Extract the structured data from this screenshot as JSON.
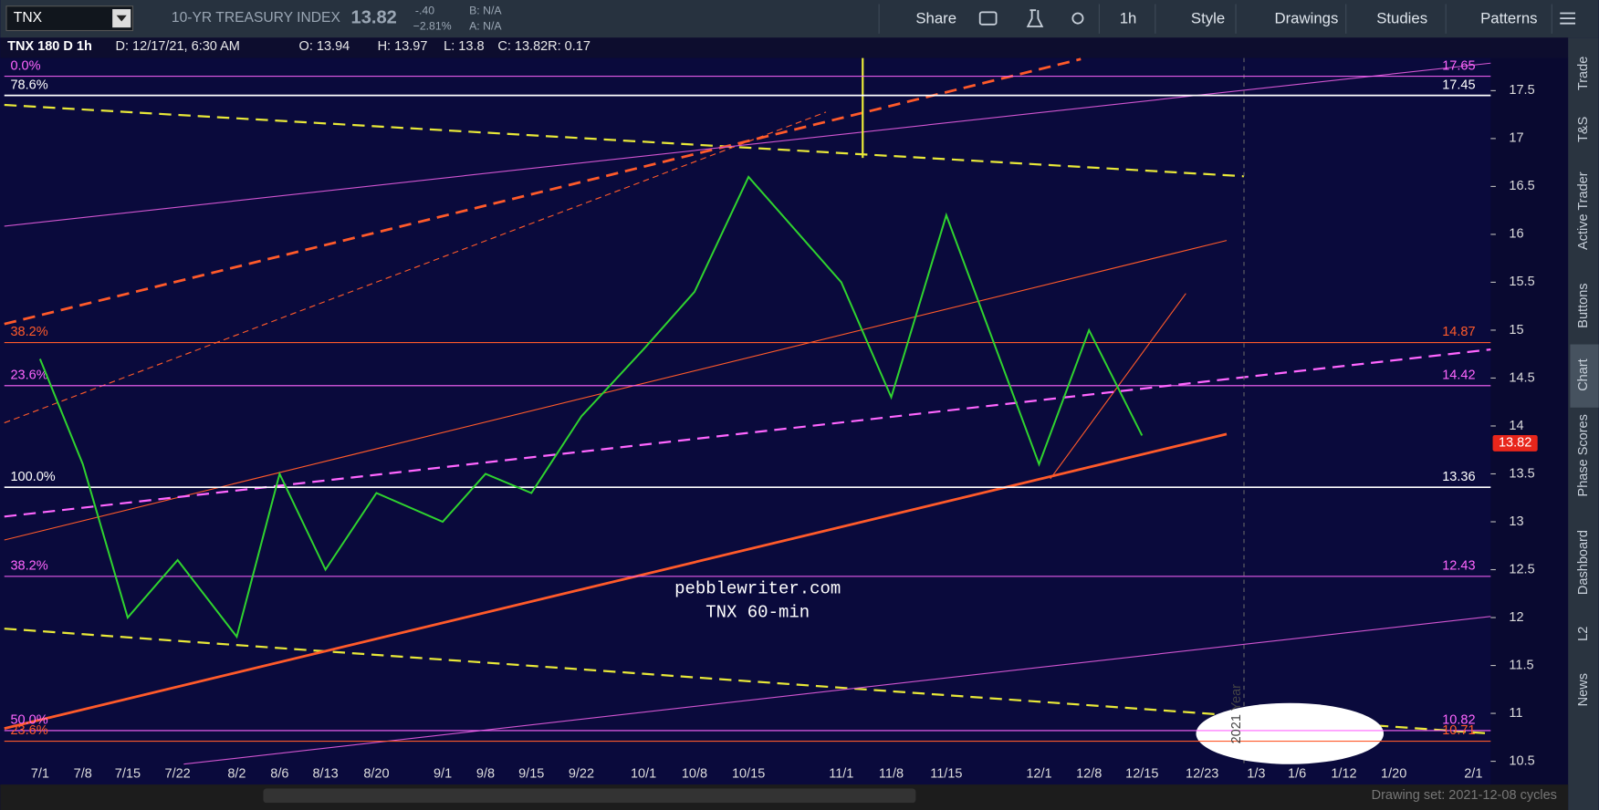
{
  "toolbar": {
    "symbol": "TNX",
    "description": "10-YR TREASURY INDEX",
    "last": "13.82",
    "change": "-.40",
    "change_pct": "−2.81%",
    "bid": "B: N/A",
    "ask": "A: N/A",
    "buttons": [
      "Share",
      "1h",
      "Style",
      "Drawings",
      "Studies",
      "Patterns"
    ]
  },
  "info_bar": {
    "title": "TNX 180 D 1h",
    "fields": [
      "D: 12/17/21, 6:30 AM",
      "O: 13.94",
      "H: 13.97",
      "L: 13.8",
      "C: 13.82",
      "R: 0.17"
    ]
  },
  "chart_data": {
    "type": "line",
    "annotations": [
      "pebblewriter.com",
      "TNX 60-min"
    ],
    "year_marker": "2021 Year",
    "categories": [
      "7/1",
      "7/8",
      "7/15",
      "7/22",
      "8/2",
      "8/6",
      "8/13",
      "8/20",
      "9/1",
      "9/8",
      "9/15",
      "9/22",
      "10/1",
      "10/8",
      "10/15",
      "11/1",
      "11/8",
      "11/15",
      "12/1",
      "12/8",
      "12/15",
      "12/23",
      "1/3",
      "1/6",
      "1/12",
      "1/20",
      "2/1"
    ],
    "values": [
      14.7,
      13.6,
      12.0,
      12.6,
      11.8,
      13.5,
      12.5,
      13.3,
      13.0,
      13.5,
      13.3,
      14.1,
      14.8,
      15.4,
      16.6,
      15.5,
      14.3,
      16.2,
      13.6,
      15.0,
      13.9,
      null,
      null,
      null,
      null,
      null,
      null
    ],
    "color": "#2fd32f",
    "ylim": [
      10.47,
      17.84
    ],
    "yticks": [
      10.5,
      11,
      11.5,
      12,
      12.5,
      13,
      13.5,
      14,
      14.5,
      15,
      15.5,
      16,
      16.5,
      17,
      17.5
    ],
    "levels": [
      {
        "label": "0.0%",
        "value": 17.65,
        "color": "#ff66ff"
      },
      {
        "label": "78.6%",
        "value": 17.45,
        "color": "#ffffff"
      },
      {
        "label": "38.2%",
        "value": 14.87,
        "color": "#ff5a2a"
      },
      {
        "label": "23.6%",
        "value": 14.42,
        "color": "#ff66ff"
      },
      {
        "label": "100.0%",
        "value": 13.36,
        "color": "#ffffff"
      },
      {
        "label": "38.2%",
        "value": 12.43,
        "color": "#ff66ff"
      },
      {
        "label": "50.0%",
        "value": 10.82,
        "color": "#ff66ff"
      },
      {
        "label": "23.6%",
        "value": 10.71,
        "color": "#ff5a2a"
      }
    ],
    "last_price": 13.82,
    "last_price_color": "#e8261b"
  },
  "sidebar": [
    "Trade",
    "T&S",
    "Active Trader",
    "Buttons",
    "Chart",
    "Phase Scores",
    "Dashboard",
    "L2",
    "News"
  ],
  "footer": {
    "drawing_set": "Drawing set: 2021-12-08 cycles"
  }
}
